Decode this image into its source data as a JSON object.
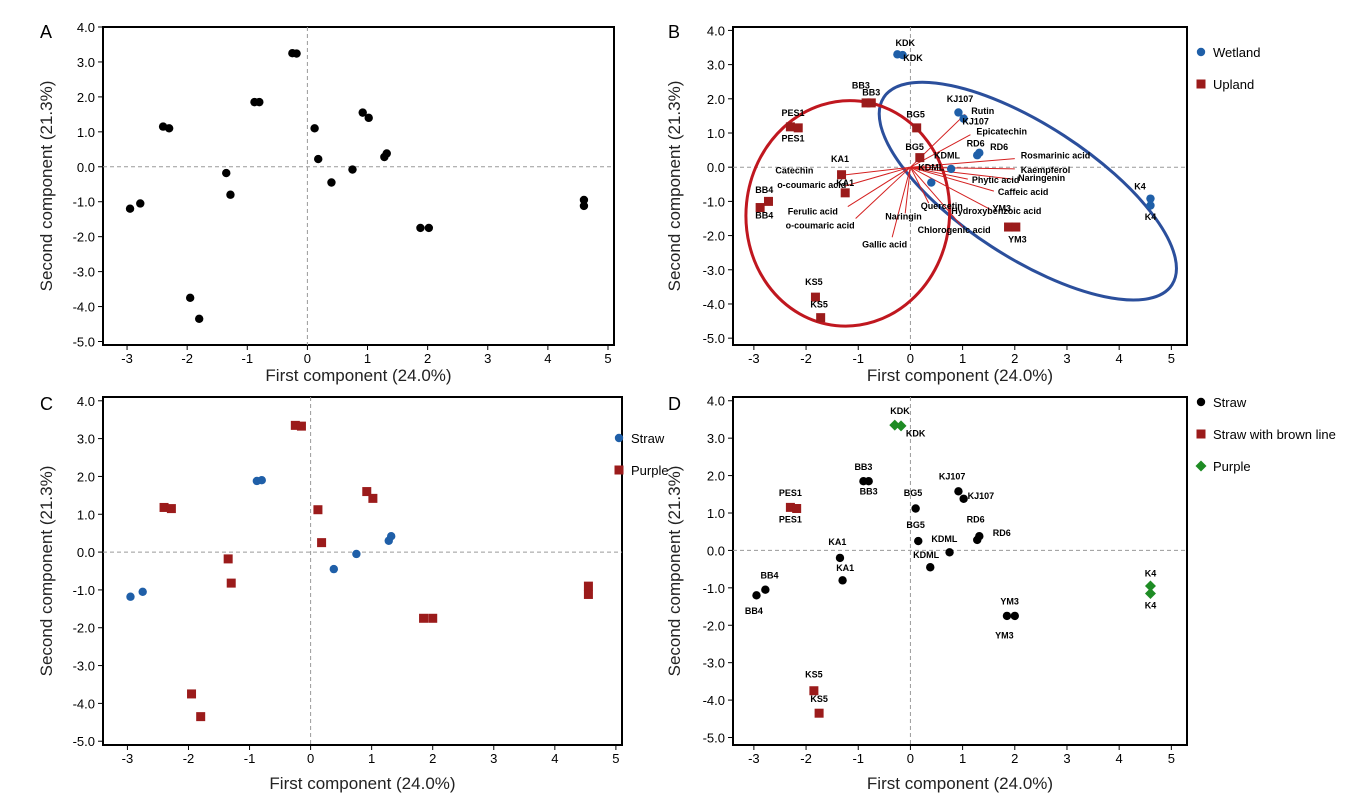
{
  "chart_data": [
    {
      "type": "scatter",
      "panel_label": "A",
      "xlabel": "First component (24.0%)",
      "ylabel": "Second component (21.3%)",
      "xticks": [
        "-3",
        "-2",
        "-1",
        "0",
        "1",
        "2",
        "3",
        "4",
        "5"
      ],
      "yticks": [
        "4.0",
        "3.0",
        "2.0",
        "1.0",
        "0.0",
        "-1.0",
        "-2.0",
        "-3.0",
        "-4.0",
        "-5.0"
      ],
      "xlim": [
        -3.4,
        5.1
      ],
      "ylim": [
        -5.1,
        4.0
      ],
      "series": [
        {
          "color": "#000000",
          "marker": "circle",
          "points": [
            [
              -0.25,
              3.25
            ],
            [
              -0.18,
              3.24
            ],
            [
              -2.4,
              1.15
            ],
            [
              -2.3,
              1.1
            ],
            [
              -0.88,
              1.85
            ],
            [
              -0.8,
              1.85
            ],
            [
              0.12,
              1.1
            ],
            [
              0.92,
              1.55
            ],
            [
              1.02,
              1.4
            ],
            [
              0.18,
              0.22
            ],
            [
              1.28,
              0.28
            ],
            [
              1.32,
              0.38
            ],
            [
              -1.35,
              -0.18
            ],
            [
              -1.28,
              -0.8
            ],
            [
              0.4,
              -0.45
            ],
            [
              0.75,
              -0.08
            ],
            [
              -2.95,
              -1.2
            ],
            [
              -2.78,
              -1.05
            ],
            [
              4.6,
              -0.95
            ],
            [
              4.6,
              -1.12
            ],
            [
              1.88,
              -1.75
            ],
            [
              2.02,
              -1.75
            ],
            [
              -1.95,
              -3.75
            ],
            [
              -1.8,
              -4.35
            ]
          ]
        }
      ]
    },
    {
      "type": "scatter",
      "panel_label": "B",
      "xlabel": "First component (24.0%)",
      "ylabel": "Second component (21.3%)",
      "xticks": [
        "-3",
        "-2",
        "-1",
        "0",
        "1",
        "2",
        "3",
        "4",
        "5"
      ],
      "yticks": [
        "4.0",
        "3.0",
        "2.0",
        "1.0",
        "0.0",
        "-1.0",
        "-2.0",
        "-3.0",
        "-4.0",
        "-5.0"
      ],
      "xlim": [
        -3.4,
        5.3
      ],
      "ylim": [
        -5.2,
        4.1
      ],
      "legend_position": "right",
      "series": [
        {
          "name": "Wetland",
          "color": "#1f5fa8",
          "marker": "circle",
          "points": [
            [
              -0.25,
              3.3
            ],
            [
              -0.15,
              3.28
            ],
            [
              0.92,
              1.6
            ],
            [
              1.02,
              1.42
            ],
            [
              1.28,
              0.35
            ],
            [
              1.32,
              0.42
            ],
            [
              0.78,
              -0.05
            ],
            [
              0.4,
              -0.45
            ],
            [
              4.6,
              -0.92
            ],
            [
              4.6,
              -1.12
            ]
          ]
        },
        {
          "name": "Upland",
          "color": "#9b1b1b",
          "marker": "square",
          "points": [
            [
              -0.85,
              1.88
            ],
            [
              -0.75,
              1.88
            ],
            [
              -2.3,
              1.18
            ],
            [
              -2.15,
              1.15
            ],
            [
              0.12,
              1.15
            ],
            [
              0.18,
              0.28
            ],
            [
              -1.32,
              -0.22
            ],
            [
              -1.25,
              -0.75
            ],
            [
              -2.88,
              -1.18
            ],
            [
              -2.72,
              -1.0
            ],
            [
              1.88,
              -1.75
            ],
            [
              2.02,
              -1.75
            ],
            [
              -1.82,
              -3.8
            ],
            [
              -1.72,
              -4.4
            ]
          ]
        }
      ],
      "point_labels": [
        {
          "text": "KDK",
          "x": -0.1,
          "y": 3.55
        },
        {
          "text": "KDK",
          "x": 0.05,
          "y": 3.1
        },
        {
          "text": "BB3",
          "x": -0.95,
          "y": 2.3
        },
        {
          "text": "BB3",
          "x": -0.75,
          "y": 2.1
        },
        {
          "text": "PES1",
          "x": -2.25,
          "y": 1.5
        },
        {
          "text": "PES1",
          "x": -2.25,
          "y": 0.75
        },
        {
          "text": "BG5",
          "x": 0.1,
          "y": 1.45
        },
        {
          "text": "KJ107",
          "x": 0.95,
          "y": 1.9
        },
        {
          "text": "KJ107",
          "x": 1.25,
          "y": 1.25
        },
        {
          "text": "RD6",
          "x": 1.25,
          "y": 0.6
        },
        {
          "text": "RD6",
          "x": 1.7,
          "y": 0.5
        },
        {
          "text": "BG5",
          "x": 0.08,
          "y": 0.5
        },
        {
          "text": "KDML",
          "x": 0.7,
          "y": 0.25
        },
        {
          "text": "KDML",
          "x": 0.4,
          "y": -0.1
        },
        {
          "text": "KA1",
          "x": -1.35,
          "y": 0.15
        },
        {
          "text": "KA1",
          "x": -1.25,
          "y": -0.55
        },
        {
          "text": "BB4",
          "x": -2.8,
          "y": -0.75
        },
        {
          "text": "BB4",
          "x": -2.8,
          "y": -1.5
        },
        {
          "text": "YM3",
          "x": 1.75,
          "y": -1.3
        },
        {
          "text": "YM3",
          "x": 2.05,
          "y": -2.2
        },
        {
          "text": "K4",
          "x": 4.4,
          "y": -0.65
        },
        {
          "text": "K4",
          "x": 4.6,
          "y": -1.55
        },
        {
          "text": "KS5",
          "x": -1.85,
          "y": -3.45
        },
        {
          "text": "KS5",
          "x": -1.75,
          "y": -4.1
        }
      ],
      "loading_vectors": [
        {
          "name": "Rutin",
          "x": 1.05,
          "y": 1.55
        },
        {
          "name": "Epicatechin",
          "x": 1.15,
          "y": 0.95
        },
        {
          "name": "Rosmarinic acid",
          "x": 2.0,
          "y": 0.25
        },
        {
          "name": "Kaempferol",
          "x": 2.0,
          "y": -0.05
        },
        {
          "name": "Naringenin",
          "x": 1.95,
          "y": -0.35
        },
        {
          "name": "Phytic acid",
          "x": 1.1,
          "y": -0.35
        },
        {
          "name": "Caffeic acid",
          "x": 1.6,
          "y": -0.7
        },
        {
          "name": "Hydroxybenzoic acid",
          "x": 1.55,
          "y": -1.25
        },
        {
          "name": "Chlorogenic acid",
          "x": 1.0,
          "y": -1.75
        },
        {
          "name": "Quercetin",
          "x": 0.35,
          "y": -1.05
        },
        {
          "name": "Naringin",
          "x": -0.1,
          "y": -1.35
        },
        {
          "name": "Gallic acid",
          "x": -0.35,
          "y": -2.05
        },
        {
          "name": "o-coumaric acid",
          "x": -1.05,
          "y": -1.5
        },
        {
          "name": "Ferulic acid",
          "x": -1.2,
          "y": -1.15
        },
        {
          "name": "o-coumaric acid",
          "x": -1.25,
          "y": -0.55
        },
        {
          "name": "Catechin",
          "x": -1.4,
          "y": -0.25
        }
      ]
    },
    {
      "type": "scatter",
      "panel_label": "C",
      "xlabel": "First component (24.0%)",
      "ylabel": "Second component (21.3%)",
      "xticks": [
        "-3",
        "-2",
        "-1",
        "0",
        "1",
        "2",
        "3",
        "4",
        "5"
      ],
      "yticks": [
        "4.0",
        "3.0",
        "2.0",
        "1.0",
        "0.0",
        "-1.0",
        "-2.0",
        "-3.0",
        "-4.0",
        "-5.0"
      ],
      "xlim": [
        -3.4,
        5.1
      ],
      "ylim": [
        -5.1,
        4.1
      ],
      "legend_position": "right",
      "series": [
        {
          "name": "Straw",
          "color": "#1f5fa8",
          "marker": "circle",
          "points": [
            [
              -0.88,
              1.88
            ],
            [
              -0.8,
              1.9
            ],
            [
              1.28,
              0.3
            ],
            [
              1.32,
              0.42
            ],
            [
              0.75,
              -0.05
            ],
            [
              0.38,
              -0.45
            ],
            [
              -2.95,
              -1.18
            ],
            [
              -2.75,
              -1.05
            ]
          ]
        },
        {
          "name": "Purple",
          "color": "#9b1b1b",
          "marker": "square",
          "points": [
            [
              -0.25,
              3.35
            ],
            [
              -0.15,
              3.33
            ],
            [
              -2.4,
              1.18
            ],
            [
              -2.28,
              1.15
            ],
            [
              0.12,
              1.12
            ],
            [
              0.92,
              1.6
            ],
            [
              1.02,
              1.42
            ],
            [
              0.18,
              0.25
            ],
            [
              -1.35,
              -0.18
            ],
            [
              -1.3,
              -0.82
            ],
            [
              4.55,
              -0.9
            ],
            [
              4.55,
              -1.12
            ],
            [
              1.85,
              -1.75
            ],
            [
              2.0,
              -1.75
            ],
            [
              -1.95,
              -3.75
            ],
            [
              -1.8,
              -4.35
            ]
          ]
        }
      ]
    },
    {
      "type": "scatter",
      "panel_label": "D",
      "xlabel": "First component (24.0%)",
      "ylabel": "Second component (21.3%)",
      "xticks": [
        "-3",
        "-2",
        "-1",
        "0",
        "1",
        "2",
        "3",
        "4",
        "5"
      ],
      "yticks": [
        "4.0",
        "3.0",
        "2.0",
        "1.0",
        "0.0",
        "-1.0",
        "-2.0",
        "-3.0",
        "-4.0",
        "-5.0"
      ],
      "xlim": [
        -3.4,
        5.3
      ],
      "ylim": [
        -5.2,
        4.1
      ],
      "legend_position": "right",
      "series": [
        {
          "name": "Straw",
          "color": "#000000",
          "marker": "circle",
          "points": [
            [
              -0.9,
              1.85
            ],
            [
              -0.8,
              1.85
            ],
            [
              0.1,
              1.12
            ],
            [
              0.92,
              1.58
            ],
            [
              1.02,
              1.38
            ],
            [
              0.15,
              0.25
            ],
            [
              1.28,
              0.28
            ],
            [
              1.32,
              0.38
            ],
            [
              0.75,
              -0.05
            ],
            [
              0.38,
              -0.45
            ],
            [
              -1.35,
              -0.2
            ],
            [
              -1.3,
              -0.8
            ],
            [
              -2.95,
              -1.2
            ],
            [
              -2.78,
              -1.05
            ],
            [
              1.85,
              -1.75
            ],
            [
              2.0,
              -1.75
            ]
          ]
        },
        {
          "name": "Straw with brown line",
          "color": "#9b1b1b",
          "marker": "square",
          "points": [
            [
              -2.3,
              1.15
            ],
            [
              -2.18,
              1.12
            ],
            [
              -1.85,
              -3.75
            ],
            [
              -1.75,
              -4.35
            ]
          ]
        },
        {
          "name": "Purple",
          "color": "#1e8c24",
          "marker": "diamond",
          "points": [
            [
              -0.3,
              3.35
            ],
            [
              -0.18,
              3.33
            ],
            [
              4.6,
              -0.95
            ],
            [
              4.6,
              -1.15
            ]
          ]
        }
      ],
      "point_labels": [
        {
          "text": "KDK",
          "x": -0.2,
          "y": 3.65
        },
        {
          "text": "KDK",
          "x": 0.1,
          "y": 3.05
        },
        {
          "text": "BB3",
          "x": -0.9,
          "y": 2.15
        },
        {
          "text": "BB3",
          "x": -0.8,
          "y": 1.5
        },
        {
          "text": "PES1",
          "x": -2.3,
          "y": 1.45
        },
        {
          "text": "PES1",
          "x": -2.3,
          "y": 0.75
        },
        {
          "text": "BG5",
          "x": 0.05,
          "y": 1.45
        },
        {
          "text": "KJ107",
          "x": 0.8,
          "y": 1.9
        },
        {
          "text": "KJ107",
          "x": 1.35,
          "y": 1.38
        },
        {
          "text": "RD6",
          "x": 1.25,
          "y": 0.75
        },
        {
          "text": "RD6",
          "x": 1.75,
          "y": 0.38
        },
        {
          "text": "BG5",
          "x": 0.1,
          "y": 0.6
        },
        {
          "text": "KDML",
          "x": 0.65,
          "y": 0.22
        },
        {
          "text": "KDML",
          "x": 0.3,
          "y": -0.2
        },
        {
          "text": "KA1",
          "x": -1.4,
          "y": 0.15
        },
        {
          "text": "KA1",
          "x": -1.25,
          "y": -0.55
        },
        {
          "text": "BB4",
          "x": -2.7,
          "y": -0.75
        },
        {
          "text": "BB4",
          "x": -3.0,
          "y": -1.7
        },
        {
          "text": "YM3",
          "x": 1.9,
          "y": -1.45
        },
        {
          "text": "YM3",
          "x": 1.8,
          "y": -2.35
        },
        {
          "text": "K4",
          "x": 4.6,
          "y": -0.7
        },
        {
          "text": "K4",
          "x": 4.6,
          "y": -1.55
        },
        {
          "text": "KS5",
          "x": -1.85,
          "y": -3.4
        },
        {
          "text": "KS5",
          "x": -1.75,
          "y": -4.05
        }
      ]
    }
  ],
  "colors": {
    "wetland_ellipse": "#2b4f9c",
    "upland_ellipse": "#c0171f",
    "loading_lines": "#d42020"
  }
}
